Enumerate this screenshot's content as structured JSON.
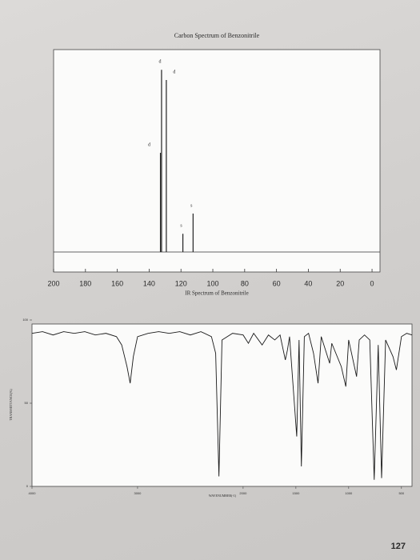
{
  "chart_data": [
    {
      "type": "stick",
      "title": "Carbon Spectrum of Benzonitrile",
      "x": [
        132.9,
        132.2,
        129.2,
        118.8,
        112.4
      ],
      "values": [
        49,
        90,
        85,
        9,
        19
      ],
      "peak_labels": [
        "d",
        "d",
        "d",
        "s",
        "s"
      ],
      "xlim": [
        200,
        -5
      ],
      "ylim": [
        0,
        100
      ],
      "xticks": [
        200,
        180,
        160,
        140,
        120,
        100,
        80,
        60,
        40,
        20,
        0
      ],
      "color": "#222222"
    },
    {
      "type": "line",
      "title": "IR Spectrum of Benzonitrile",
      "x_label": "WAVENUMBER(-1)",
      "y_label": "TRANSMITTANCE(%)",
      "x": [
        4000,
        3900,
        3800,
        3700,
        3600,
        3500,
        3400,
        3300,
        3200,
        3150,
        3100,
        3070,
        3040,
        3000,
        2900,
        2800,
        2700,
        2600,
        2500,
        2400,
        2300,
        2260,
        2229,
        2200,
        2100,
        2000,
        1950,
        1900,
        1820,
        1760,
        1700,
        1650,
        1600,
        1580,
        1560,
        1492,
        1470,
        1448,
        1420,
        1380,
        1333,
        1290,
        1260,
        1180,
        1160,
        1070,
        1027,
        1000,
        925,
        900,
        850,
        800,
        758,
        720,
        688,
        650,
        580,
        548,
        500,
        450,
        400
      ],
      "values": [
        92,
        93,
        91,
        93,
        92,
        93,
        91,
        92,
        90,
        85,
        72,
        62,
        78,
        90,
        92,
        93,
        92,
        93,
        91,
        93,
        90,
        80,
        6,
        88,
        92,
        91,
        86,
        92,
        85,
        91,
        88,
        91,
        76,
        82,
        90,
        30,
        88,
        12,
        90,
        92,
        80,
        62,
        90,
        74,
        86,
        72,
        60,
        88,
        66,
        88,
        91,
        88,
        4,
        85,
        5,
        88,
        78,
        70,
        90,
        92,
        91
      ],
      "xlim": [
        4000,
        400
      ],
      "ylim": [
        0,
        100
      ],
      "xticks": [
        4000,
        3000,
        2000,
        1500,
        1000,
        500
      ],
      "yticks": [
        0,
        50,
        100
      ],
      "color": "#1a1a1a"
    }
  ],
  "page_number": "127"
}
